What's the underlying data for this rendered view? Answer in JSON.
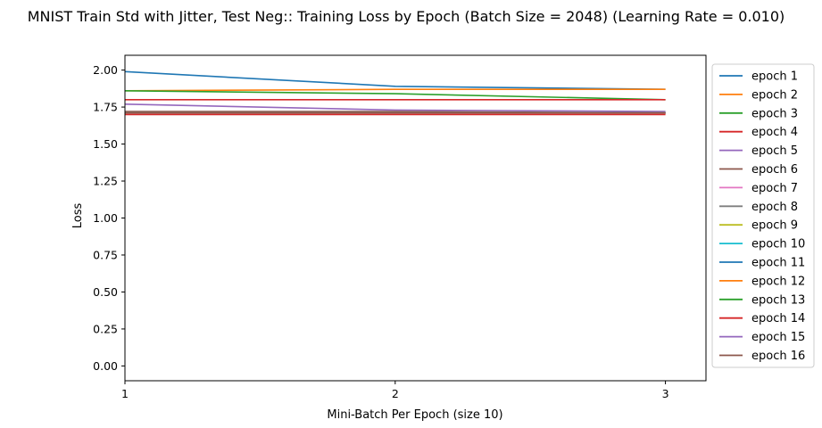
{
  "chart_data": {
    "type": "line",
    "title": "MNIST Train Std with Jitter, Test Neg:: Training Loss by Epoch (Batch Size = 2048) (Learning Rate = 0.010)",
    "xlabel": "Mini-Batch Per Epoch (size 10)",
    "ylabel": "Loss",
    "xlim": [
      1,
      3.15
    ],
    "ylim": [
      -0.1,
      2.1
    ],
    "xticks": [
      "1",
      "2",
      "3"
    ],
    "yticks": [
      "0.00",
      "0.25",
      "0.50",
      "0.75",
      "1.00",
      "1.25",
      "1.50",
      "1.75",
      "2.00"
    ],
    "x": [
      1,
      2,
      3
    ],
    "legend_position": "outside-right",
    "grid": false,
    "series": [
      {
        "name": "epoch 1",
        "color": "#1f77b4",
        "values": [
          1.99,
          1.89,
          1.87
        ]
      },
      {
        "name": "epoch 2",
        "color": "#ff7f0e",
        "values": [
          1.86,
          1.87,
          1.87
        ]
      },
      {
        "name": "epoch 3",
        "color": "#2ca02c",
        "values": [
          1.86,
          1.84,
          1.8
        ]
      },
      {
        "name": "epoch 4",
        "color": "#d62728",
        "values": [
          1.8,
          1.8,
          1.8
        ]
      },
      {
        "name": "epoch 5",
        "color": "#9467bd",
        "values": [
          1.77,
          1.73,
          1.72
        ]
      },
      {
        "name": "epoch 6",
        "color": "#8c564b",
        "values": [
          1.72,
          1.72,
          1.71
        ]
      },
      {
        "name": "epoch 7",
        "color": "#e377c2",
        "values": [
          1.71,
          1.71,
          1.71
        ]
      },
      {
        "name": "epoch 8",
        "color": "#7f7f7f",
        "values": [
          1.71,
          1.71,
          1.71
        ]
      },
      {
        "name": "epoch 9",
        "color": "#bcbd22",
        "values": [
          1.71,
          1.71,
          1.71
        ]
      },
      {
        "name": "epoch 10",
        "color": "#17becf",
        "values": [
          1.71,
          1.71,
          1.71
        ]
      },
      {
        "name": "epoch 11",
        "color": "#1f77b4",
        "values": [
          1.71,
          1.71,
          1.71
        ]
      },
      {
        "name": "epoch 12",
        "color": "#ff7f0e",
        "values": [
          1.71,
          1.71,
          1.71
        ]
      },
      {
        "name": "epoch 13",
        "color": "#2ca02c",
        "values": [
          1.71,
          1.71,
          1.71
        ]
      },
      {
        "name": "epoch 14",
        "color": "#d62728",
        "values": [
          1.7,
          1.7,
          1.7
        ]
      },
      {
        "name": "epoch 15",
        "color": "#9467bd",
        "values": [
          1.71,
          1.71,
          1.71
        ]
      },
      {
        "name": "epoch 16",
        "color": "#8c564b",
        "values": [
          1.71,
          1.71,
          1.71
        ]
      }
    ]
  }
}
